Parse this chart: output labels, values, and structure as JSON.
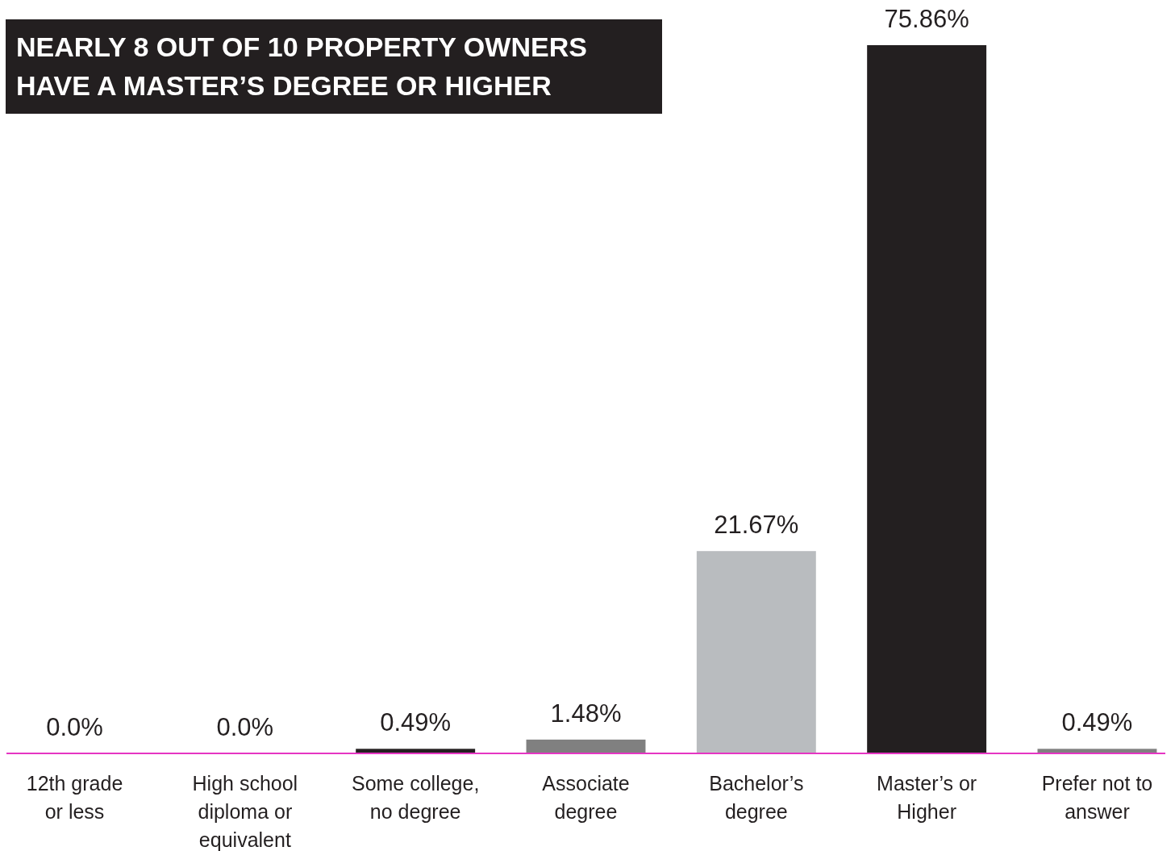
{
  "chart_data": {
    "type": "bar",
    "title": "NEARLY 8 OUT OF 10 PROPERTY OWNERS\nHAVE A MASTER’S DEGREE OR HIGHER",
    "categories": [
      "12th grade\nor less",
      "High school\ndiploma or\nequivalent",
      "Some college,\nno degree",
      "Associate\ndegree",
      "Bachelor’s\ndegree",
      "Master’s or\nHigher",
      "Prefer not to\nanswer"
    ],
    "values": [
      0,
      0,
      0.49,
      1.48,
      21.67,
      75.86,
      0.49
    ],
    "colors": [
      "#231f20",
      "#231f20",
      "#231f20",
      "#808080",
      "#b9bcbf",
      "#231f20",
      "#808080"
    ],
    "value_labels": [
      "0.0%",
      "0.0%",
      "0.49%",
      "1.48%",
      "21.67%",
      "75.86%",
      "0.49%"
    ]
  }
}
